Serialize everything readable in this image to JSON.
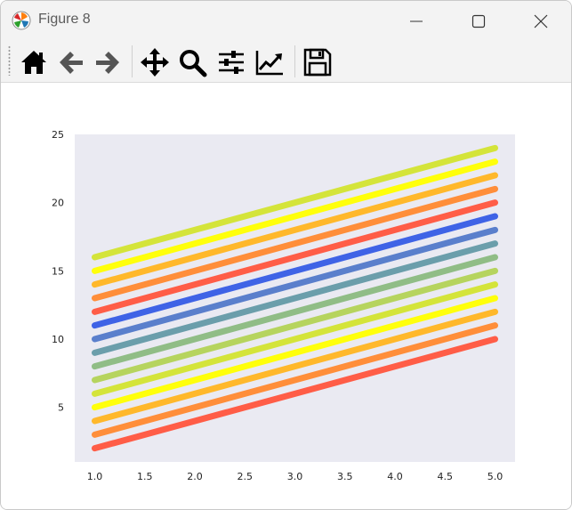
{
  "window": {
    "title": "Figure 8",
    "app_icon": "matplotlib-logo-icon",
    "controls": [
      "minimize-icon",
      "maximize-icon",
      "close-icon"
    ]
  },
  "toolbar": {
    "buttons": [
      "home-icon",
      "back-arrow-icon",
      "forward-arrow-icon",
      "pan-move-icon",
      "zoom-magnifier-icon",
      "configure-subplots-icon",
      "edit-axes-icon",
      "save-disk-icon"
    ]
  },
  "chart_data": {
    "type": "line",
    "x": [
      1.0,
      5.0
    ],
    "xlim": [
      0.8,
      5.2
    ],
    "ylim": [
      1,
      25
    ],
    "xticks": [
      "1.0",
      "1.5",
      "2.0",
      "2.5",
      "3.0",
      "3.5",
      "4.0",
      "4.5",
      "5.0"
    ],
    "yticks": [
      "5",
      "10",
      "15",
      "20",
      "25"
    ],
    "grid": false,
    "background": "#eaeaf2",
    "series": [
      {
        "values": [
          2,
          10
        ],
        "color": "#ff5d47"
      },
      {
        "values": [
          3,
          11
        ],
        "color": "#ff8e3a"
      },
      {
        "values": [
          4,
          12
        ],
        "color": "#ffb82b"
      },
      {
        "values": [
          5,
          13
        ],
        "color": "#ffff0b"
      },
      {
        "values": [
          6,
          14
        ],
        "color": "#d4e43a"
      },
      {
        "values": [
          7,
          15
        ],
        "color": "#b6d45e"
      },
      {
        "values": [
          8,
          16
        ],
        "color": "#90bd86"
      },
      {
        "values": [
          9,
          17
        ],
        "color": "#6b9eab"
      },
      {
        "values": [
          10,
          18
        ],
        "color": "#5a7fcc"
      },
      {
        "values": [
          11,
          19
        ],
        "color": "#3f63e6"
      },
      {
        "values": [
          12,
          20
        ],
        "color": "#ff5d47"
      },
      {
        "values": [
          13,
          21
        ],
        "color": "#ff8e3a"
      },
      {
        "values": [
          14,
          22
        ],
        "color": "#ffb82b"
      },
      {
        "values": [
          15,
          23
        ],
        "color": "#ffff0b"
      },
      {
        "values": [
          16,
          24
        ],
        "color": "#d4e43a"
      }
    ]
  }
}
